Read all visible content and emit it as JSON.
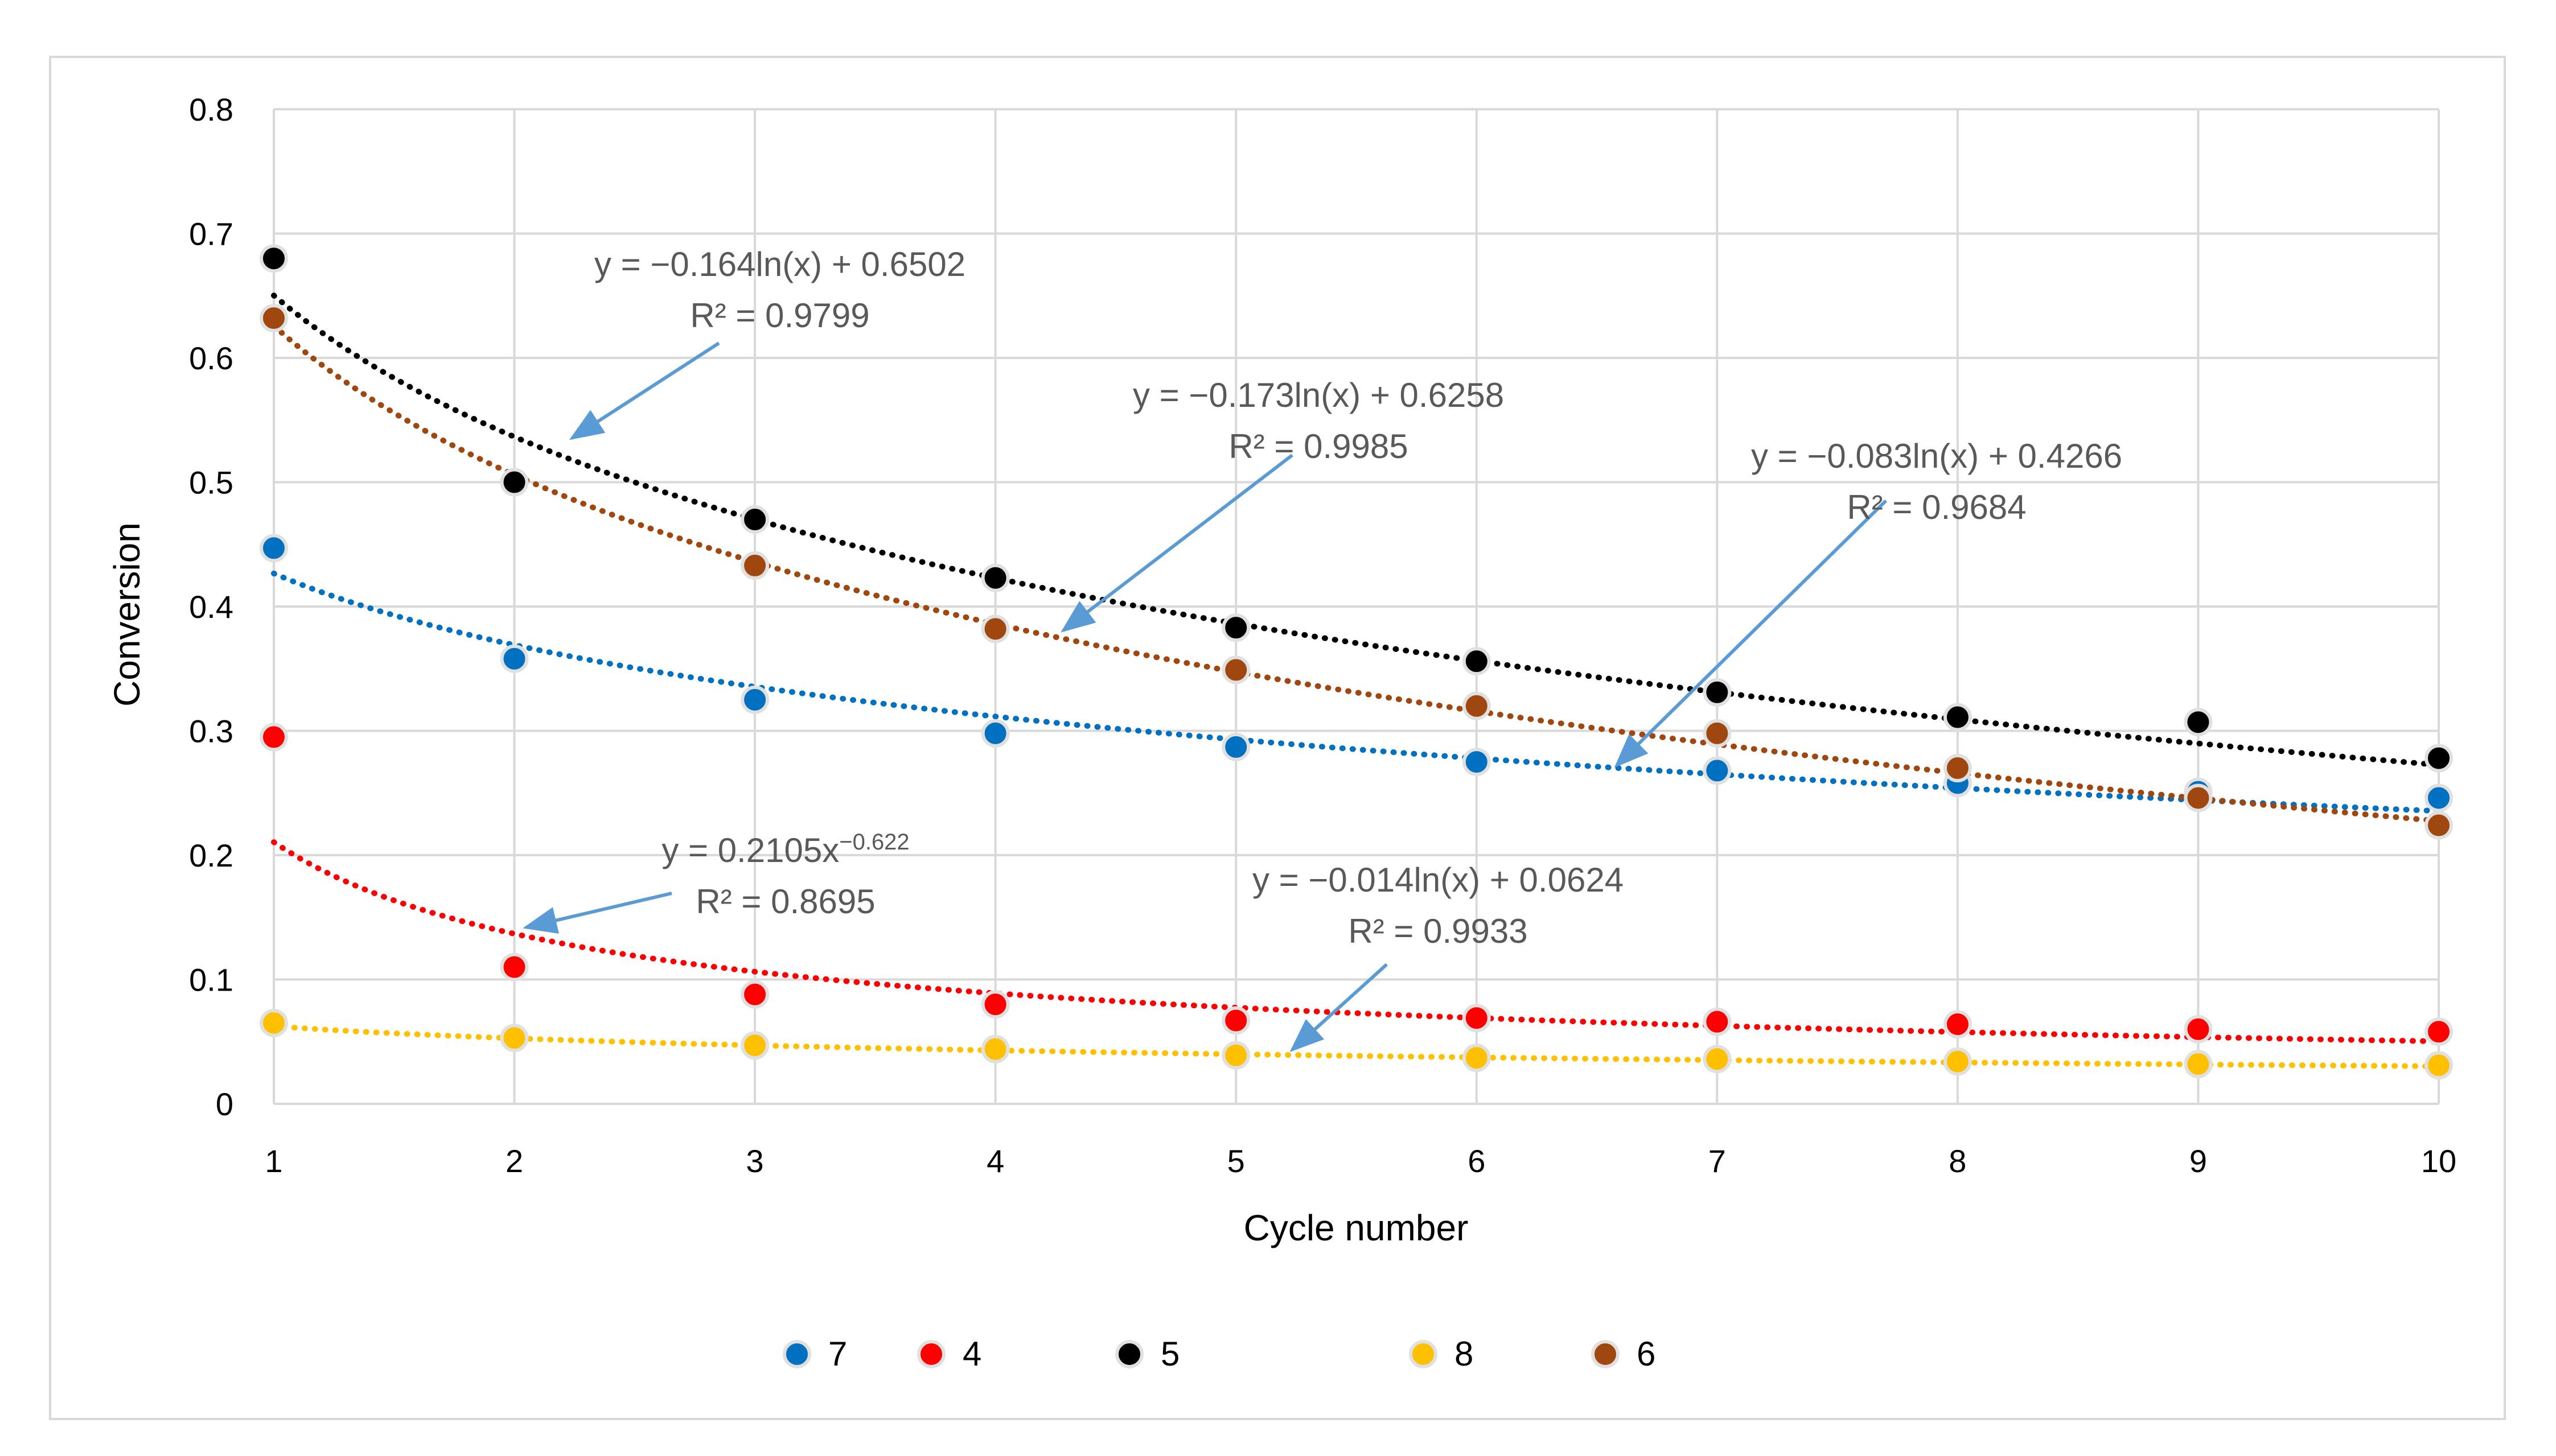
{
  "chart_data": {
    "type": "scatter",
    "xlabel": "Cycle number",
    "ylabel": "Conversion",
    "xlim": [
      1,
      10
    ],
    "ylim": [
      0,
      0.8
    ],
    "x_ticks": [
      "1",
      "2",
      "3",
      "4",
      "5",
      "6",
      "7",
      "8",
      "9",
      "10"
    ],
    "y_ticks": [
      "0",
      "0.1",
      "0.2",
      "0.3",
      "0.4",
      "0.5",
      "0.6",
      "0.7",
      "0.8"
    ],
    "grid": true,
    "legend_position": "bottom",
    "x": [
      1,
      2,
      3,
      4,
      5,
      6,
      7,
      8,
      9,
      10
    ],
    "series": [
      {
        "name": "7",
        "color": "#0070c0",
        "values": [
          0.447,
          0.358,
          0.325,
          0.298,
          0.287,
          0.275,
          0.268,
          0.258,
          0.251,
          0.246
        ],
        "trend": {
          "type": "log",
          "a": -0.083,
          "b": 0.4266
        }
      },
      {
        "name": "4",
        "color": "#ff0000",
        "values": [
          0.295,
          0.11,
          0.088,
          0.08,
          0.067,
          0.069,
          0.066,
          0.064,
          0.06,
          0.058
        ],
        "trend": {
          "type": "power",
          "a": 0.2105,
          "b": -0.622
        }
      },
      {
        "name": "5",
        "color": "#000000",
        "values": [
          0.68,
          0.5,
          0.47,
          0.423,
          0.383,
          0.356,
          0.331,
          0.311,
          0.307,
          0.278
        ],
        "trend": {
          "type": "log",
          "a": -0.164,
          "b": 0.6502
        }
      },
      {
        "name": "8",
        "color": "#ffc000",
        "values": [
          0.065,
          0.053,
          0.047,
          0.044,
          0.039,
          0.037,
          0.036,
          0.034,
          0.032,
          0.031
        ],
        "trend": {
          "type": "log",
          "a": -0.014,
          "b": 0.0624
        }
      },
      {
        "name": "6",
        "color": "#a0460f",
        "values": [
          0.632,
          0.5,
          0.433,
          0.382,
          0.349,
          0.32,
          0.298,
          0.27,
          0.246,
          0.224
        ],
        "trend": {
          "type": "log",
          "a": -0.173,
          "b": 0.6258
        }
      }
    ],
    "annotations": [
      {
        "id": "s5",
        "line1": "y = −0.164ln(x) + 0.6502",
        "line2": "R² = 0.9799"
      },
      {
        "id": "s6",
        "line1": "y = −0.173ln(x) + 0.6258",
        "line2": "R² = 0.9985"
      },
      {
        "id": "s7",
        "line1": "y = −0.083ln(x) + 0.4266",
        "line2": "R² = 0.9684"
      },
      {
        "id": "s4",
        "line1_base": "y = 0.2105x",
        "line1_exp": "−0.622",
        "line2": "R² = 0.8695"
      },
      {
        "id": "s8",
        "line1": "y = −0.014ln(x) + 0.0624",
        "line2": "R² = 0.9933"
      }
    ],
    "annotation_arrow_color": "#5b9bd5"
  }
}
